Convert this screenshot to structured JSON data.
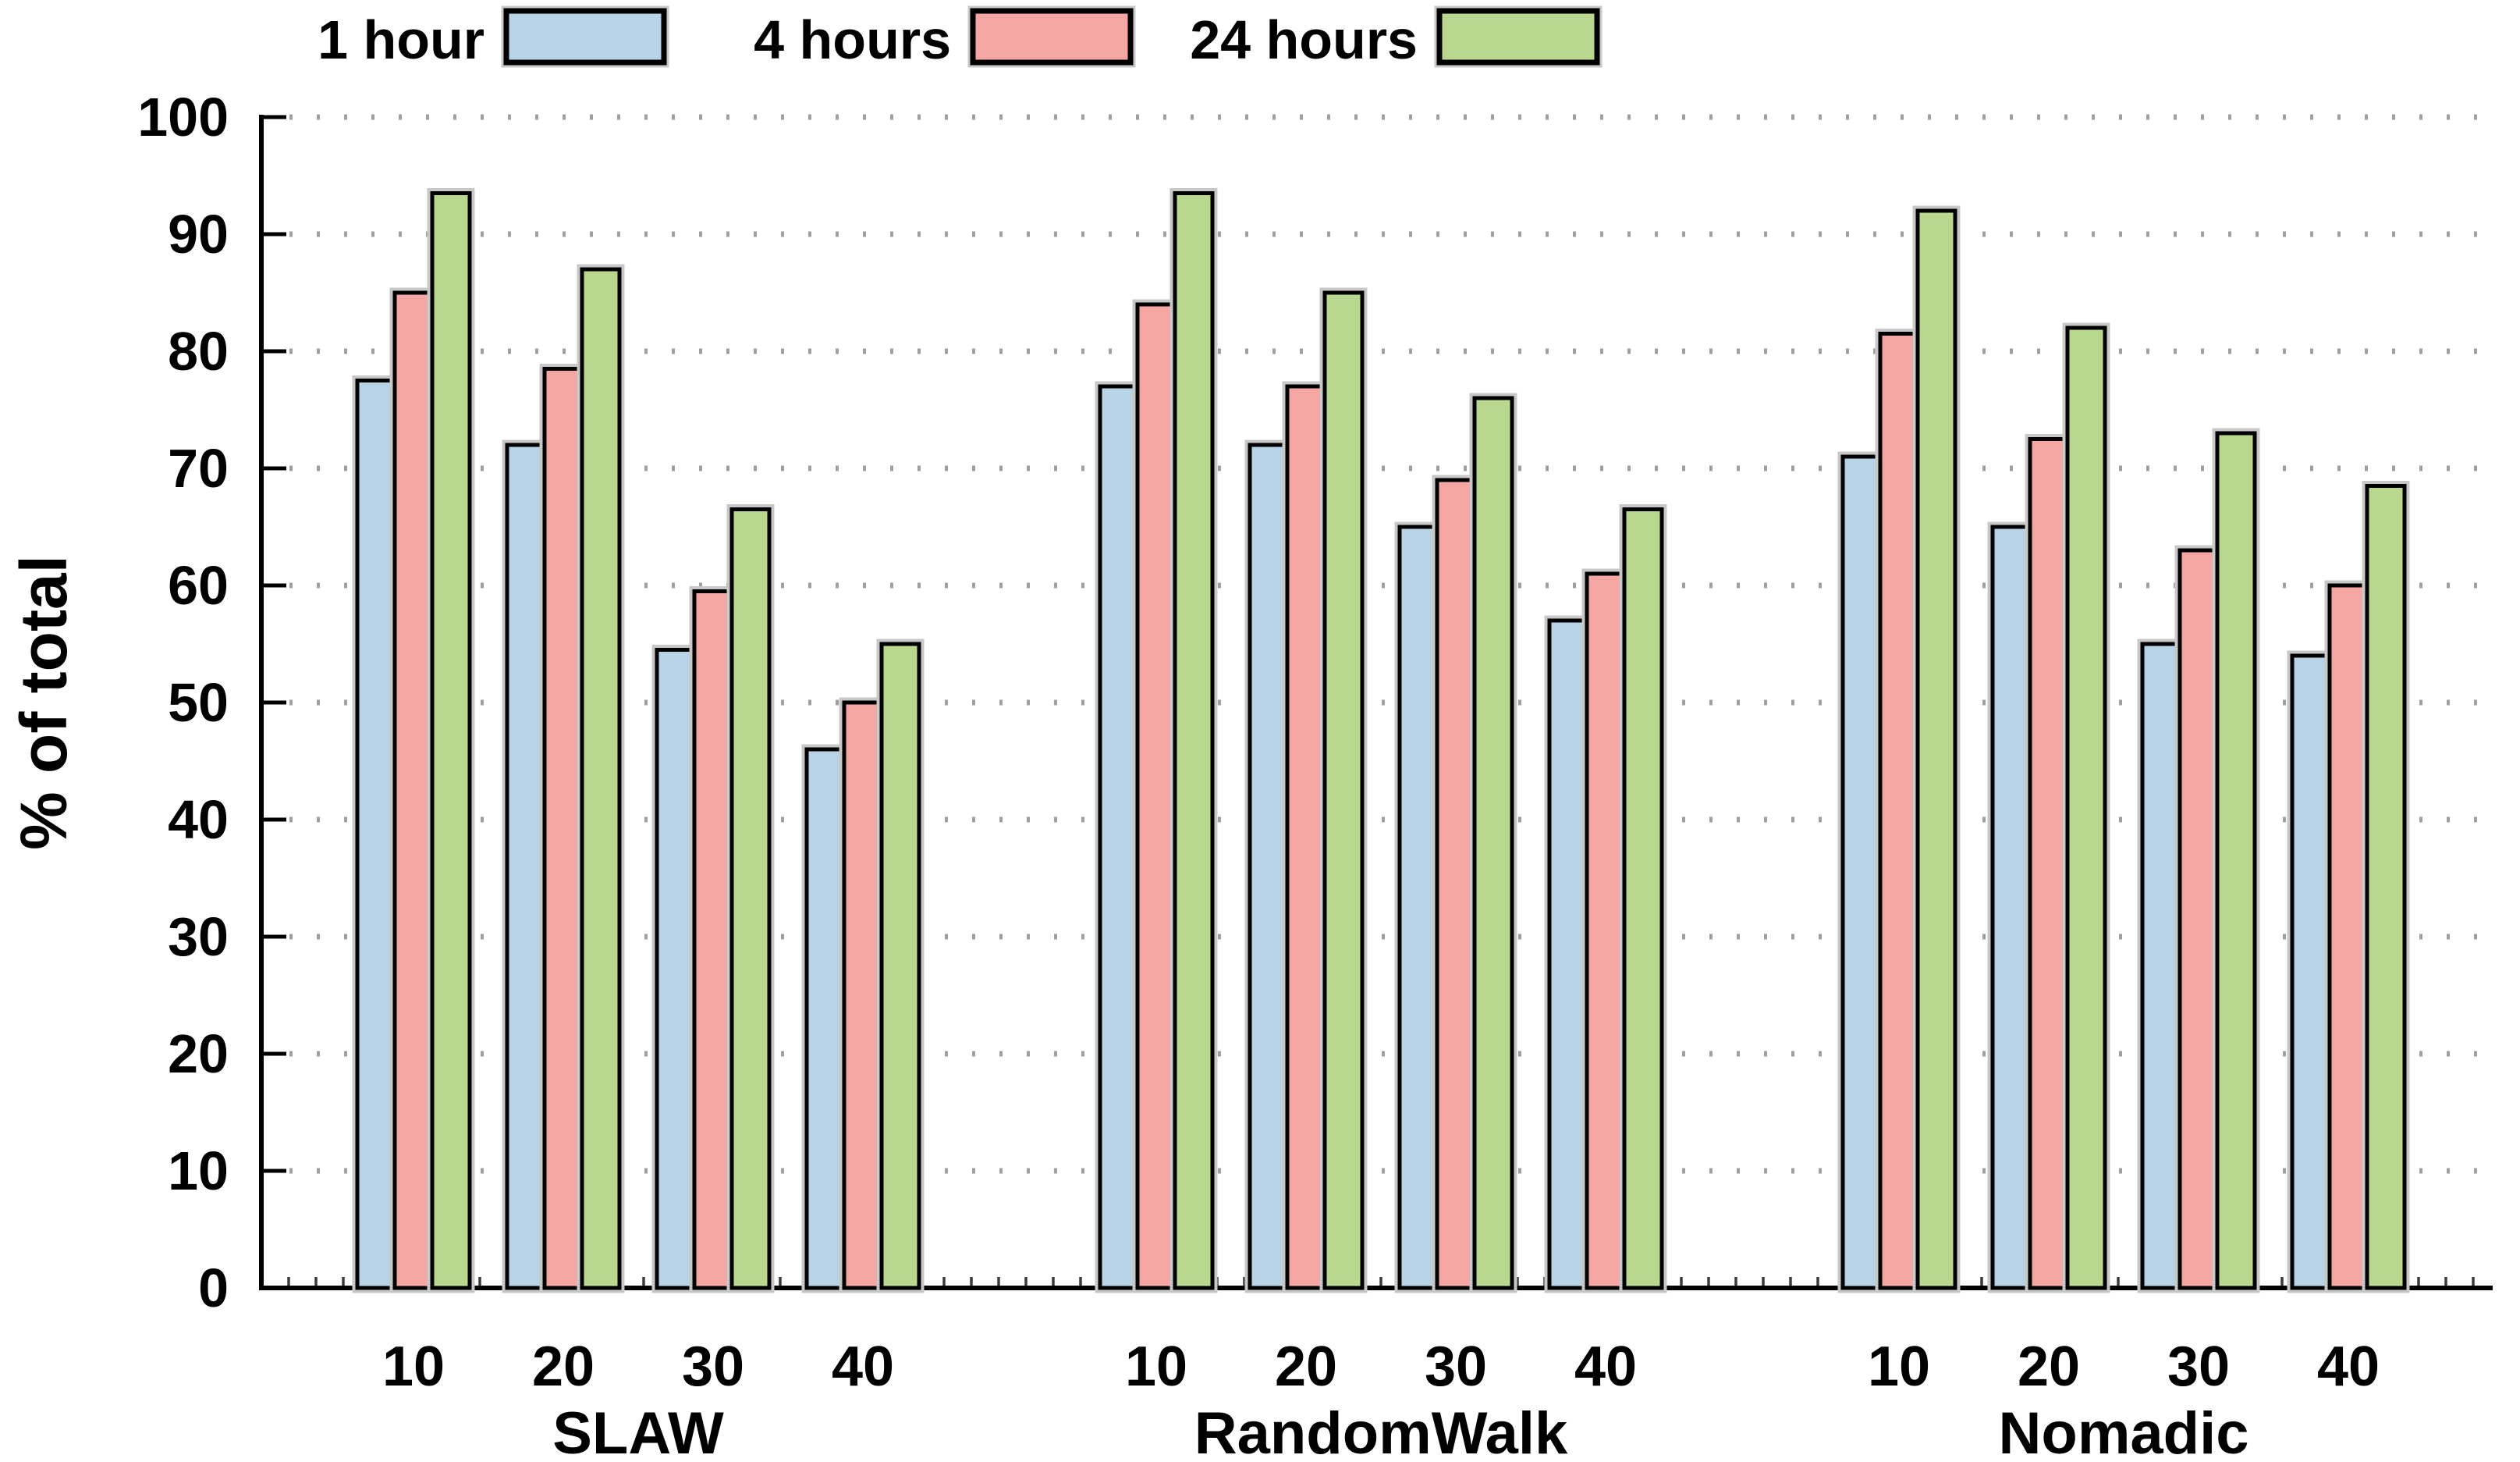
{
  "chart_data": {
    "type": "bar",
    "title": "",
    "xlabel": "",
    "ylabel": "% of total",
    "ylim": [
      0,
      100
    ],
    "ytick_step": 10,
    "yticks": [
      0,
      10,
      20,
      30,
      40,
      50,
      60,
      70,
      80,
      90,
      100
    ],
    "grid": {
      "horizontal": true,
      "style": "dotted",
      "color": "#8f8f8f"
    },
    "legend": {
      "position": "top",
      "entries": [
        {
          "label": "1 hour",
          "color": "#B9D3E6"
        },
        {
          "label": "4 hours",
          "color": "#F4A6A3"
        },
        {
          "label": "24 hours",
          "color": "#BAD78F"
        }
      ]
    },
    "categories": [
      "10",
      "20",
      "30",
      "40"
    ],
    "groups": [
      {
        "label": "SLAW",
        "series": [
          {
            "name": "1 hour",
            "values": [
              77.5,
              72,
              54.5,
              46
            ]
          },
          {
            "name": "4 hours",
            "values": [
              85,
              78.5,
              59.5,
              50
            ]
          },
          {
            "name": "24 hours",
            "values": [
              93.5,
              87,
              66.5,
              55
            ]
          }
        ]
      },
      {
        "label": "RandomWalk",
        "series": [
          {
            "name": "1 hour",
            "values": [
              77,
              72,
              65,
              57
            ]
          },
          {
            "name": "4 hours",
            "values": [
              84,
              77,
              69,
              61
            ]
          },
          {
            "name": "24 hours",
            "values": [
              93.5,
              85,
              76,
              66.5
            ]
          }
        ]
      },
      {
        "label": "Nomadic",
        "series": [
          {
            "name": "1 hour",
            "values": [
              71,
              65,
              55,
              54
            ]
          },
          {
            "name": "4 hours",
            "values": [
              81.5,
              72.5,
              63,
              60
            ]
          },
          {
            "name": "24 hours",
            "values": [
              92,
              82,
              73,
              68.5
            ]
          }
        ]
      }
    ],
    "bar_style": {
      "outline_color": "#000000",
      "shadow_color": "#c8c8c8"
    }
  }
}
